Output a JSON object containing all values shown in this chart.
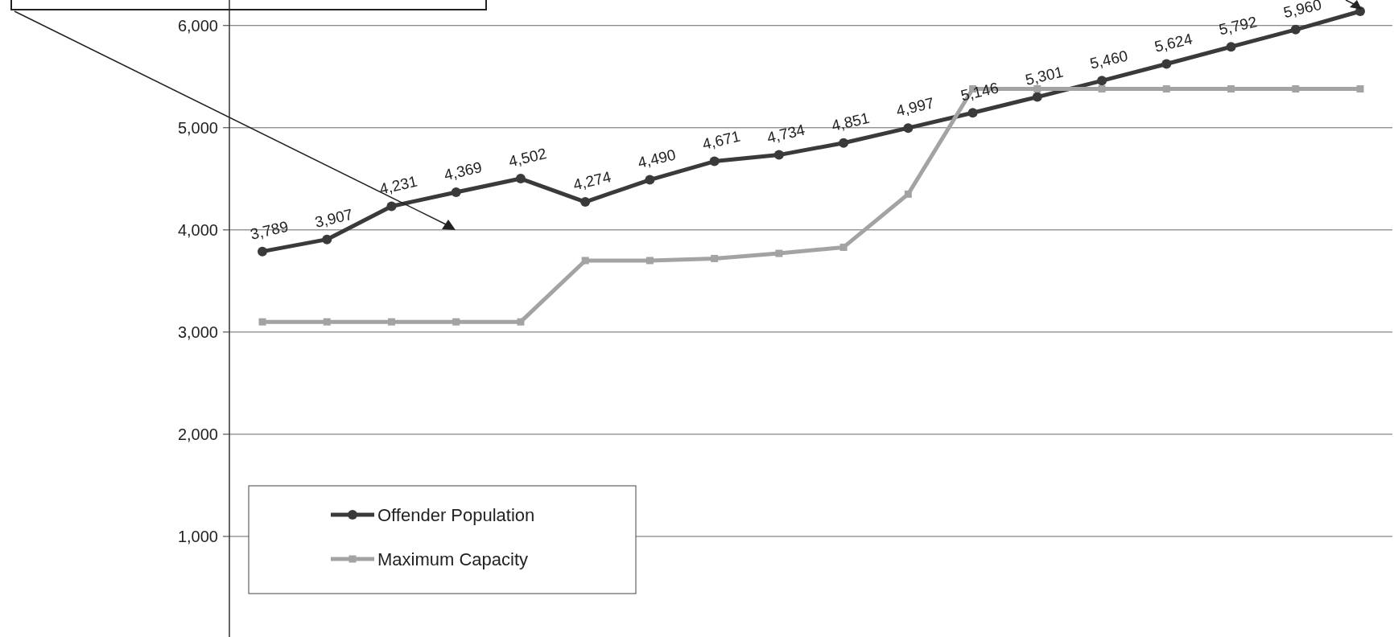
{
  "chart_data": {
    "type": "line",
    "categories": [
      null,
      null,
      null,
      null,
      null,
      null,
      null,
      null,
      null,
      null,
      null,
      null,
      null,
      null,
      null,
      null,
      null,
      null
    ],
    "series": [
      {
        "name": "Offender Population",
        "color": "#3a3a3a",
        "marker": "circle",
        "values": [
          3789,
          3907,
          4231,
          4369,
          4502,
          4274,
          4490,
          4671,
          4734,
          4851,
          4997,
          5146,
          5301,
          5460,
          5624,
          5792,
          5960,
          6140
        ],
        "value_labels": [
          "3,789",
          "3,907",
          "4,231",
          "4,369",
          "4,502",
          "4,274",
          "4,490",
          "4,671",
          "4,734",
          "4,851",
          "4,997",
          "5,146",
          "5,301",
          "5,460",
          "5,624",
          "5,792",
          "5,960",
          null
        ]
      },
      {
        "name": "Maximum Capacity",
        "color": "#a3a3a3",
        "marker": "square",
        "values": [
          3100,
          3100,
          3100,
          3100,
          3100,
          3700,
          3700,
          3720,
          3770,
          3830,
          4350,
          5380,
          5380,
          5380,
          5380,
          5380,
          5380,
          5380
        ]
      }
    ],
    "ylim": [
      0,
      6250
    ],
    "yticks": [
      {
        "value": 1000,
        "label": "1,000"
      },
      {
        "value": 2000,
        "label": "2,000"
      },
      {
        "value": 3000,
        "label": "3,000"
      },
      {
        "value": 4000,
        "label": "4,000"
      },
      {
        "value": 5000,
        "label": "5,000"
      },
      {
        "value": 6000,
        "label": "6,000"
      }
    ],
    "grid": "y",
    "legend": "bottom left",
    "line_style": "solid"
  }
}
